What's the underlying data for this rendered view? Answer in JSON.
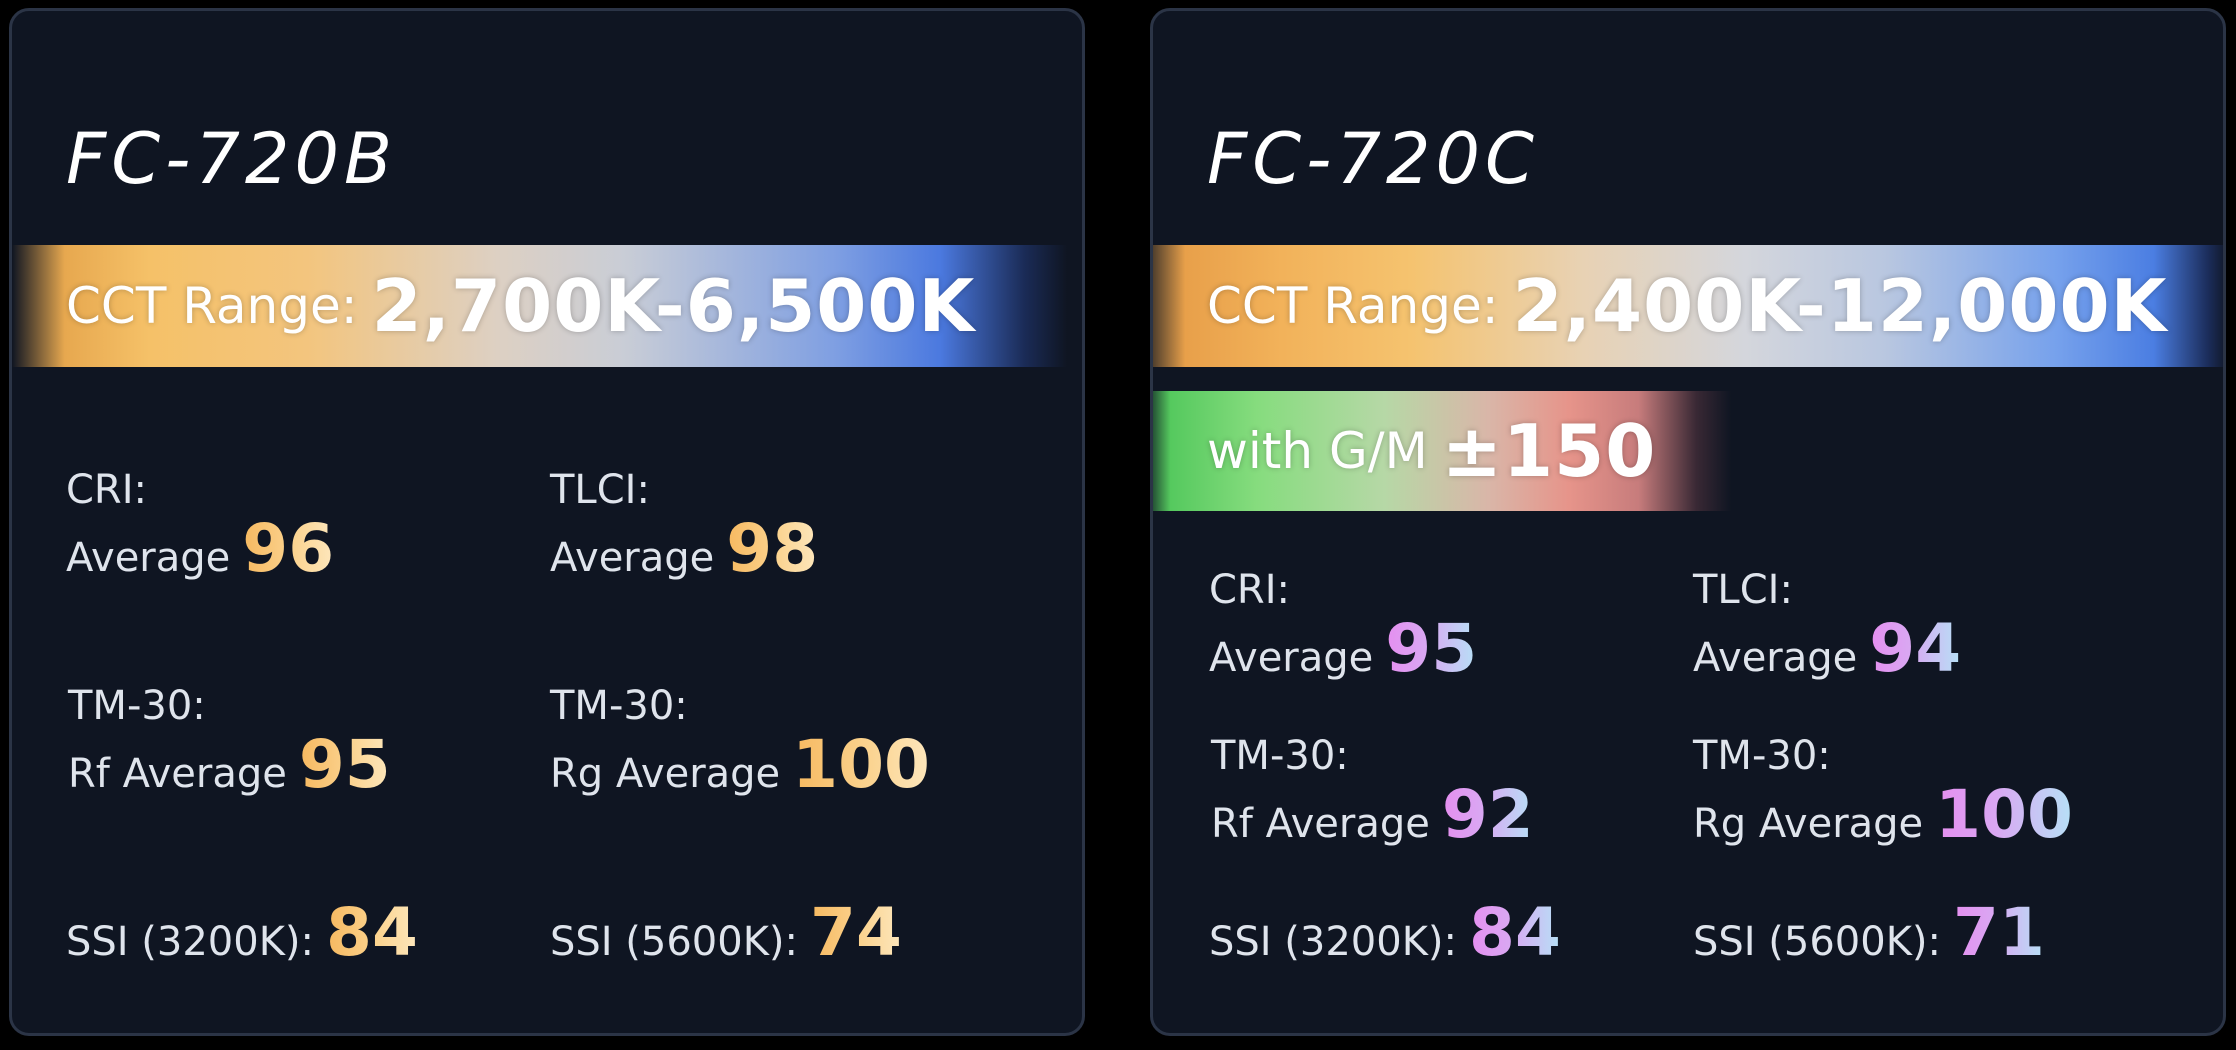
{
  "cards": [
    {
      "model": "FC-720B",
      "cct_label": "CCT Range:",
      "cct_value": "2,700K-6,500K",
      "stats": {
        "cri": {
          "label1": "CRI:",
          "label2": "Average",
          "value": "96"
        },
        "tlci": {
          "label1": "TLCI:",
          "label2": "Average",
          "value": "98"
        },
        "tm30_rf": {
          "label1": "TM-30:",
          "label2": "Rf Average",
          "value": "95"
        },
        "tm30_rg": {
          "label1": "TM-30:",
          "label2": "Rg Average",
          "value": "100"
        },
        "ssi_3200": {
          "label": "SSI (3200K):",
          "value": "84"
        },
        "ssi_5600": {
          "label": "SSI (5600K):",
          "value": "74"
        }
      },
      "accent_colors": [
        "#f6b85f",
        "#fde7bd"
      ]
    },
    {
      "model": "FC-720C",
      "cct_label": "CCT Range:",
      "cct_value": "2,400K-12,000K",
      "gm_label": "with G/M",
      "gm_value": "±150",
      "stats": {
        "cri": {
          "label1": "CRI:",
          "label2": "Average",
          "value": "95"
        },
        "tlci": {
          "label1": "TLCI:",
          "label2": "Average",
          "value": "94"
        },
        "tm30_rf": {
          "label1": "TM-30:",
          "label2": "Rf Average",
          "value": "92"
        },
        "tm30_rg": {
          "label1": "TM-30:",
          "label2": "Rg Average",
          "value": "100"
        },
        "ssi_3200": {
          "label": "SSI (3200K):",
          "value": "84"
        },
        "ssi_5600": {
          "label": "SSI (5600K):",
          "value": "71"
        }
      },
      "accent_colors": [
        "#e58ef0",
        "#b6e1f6"
      ]
    }
  ]
}
